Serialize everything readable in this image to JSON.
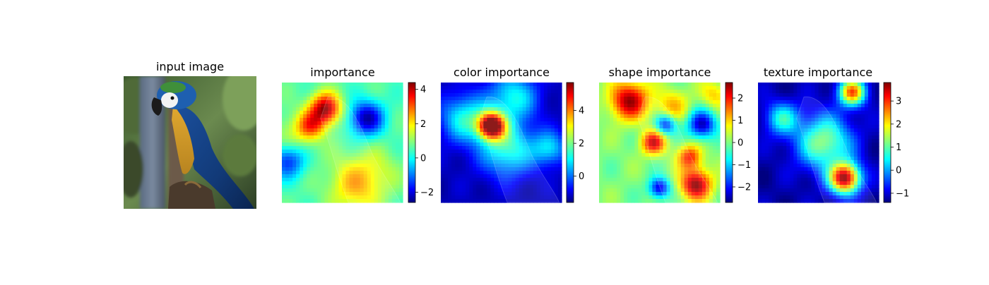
{
  "chart_data": [
    {
      "type": "image",
      "title": "input image",
      "content": "parrot photo"
    },
    {
      "type": "heatmap",
      "title": "importance",
      "colorbar": {
        "ticks": [
          -2,
          0,
          2,
          4
        ],
        "range": [
          -2.6,
          4.4
        ]
      },
      "hotspots": [
        {
          "x": 0.36,
          "y": 0.22,
          "value": 4.2,
          "spread": 0.09
        },
        {
          "x": 0.24,
          "y": 0.36,
          "value": 2.6,
          "spread": 0.08
        },
        {
          "x": 0.62,
          "y": 0.85,
          "value": 2.3,
          "spread": 0.16
        },
        {
          "x": 0.1,
          "y": 0.45,
          "value": 1.4,
          "spread": 0.14
        },
        {
          "x": 0.82,
          "y": 0.7,
          "value": 1.0,
          "spread": 0.12
        },
        {
          "x": 0.7,
          "y": 0.3,
          "value": -2.3,
          "spread": 0.1
        },
        {
          "x": 0.05,
          "y": 0.65,
          "value": -1.6,
          "spread": 0.1
        }
      ],
      "base": 0.6
    },
    {
      "type": "heatmap",
      "title": "color importance",
      "colorbar": {
        "ticks": [
          0,
          2,
          4
        ],
        "range": [
          -1.6,
          5.7
        ]
      },
      "hotspots": [
        {
          "x": 0.42,
          "y": 0.36,
          "value": 5.4,
          "spread": 0.08
        },
        {
          "x": 0.55,
          "y": 0.55,
          "value": 1.5,
          "spread": 0.16
        },
        {
          "x": 0.2,
          "y": 0.3,
          "value": 1.3,
          "spread": 0.14
        },
        {
          "x": 0.6,
          "y": 0.12,
          "value": 1.2,
          "spread": 0.14
        },
        {
          "x": 0.9,
          "y": 0.55,
          "value": 0.8,
          "spread": 0.1
        }
      ],
      "base": -1.2
    },
    {
      "type": "heatmap",
      "title": "shape importance",
      "colorbar": {
        "ticks": [
          -2,
          -1,
          0,
          1,
          2
        ],
        "range": [
          -2.7,
          2.7
        ]
      },
      "hotspots": [
        {
          "x": 0.25,
          "y": 0.15,
          "value": 2.5,
          "spread": 0.11
        },
        {
          "x": 0.45,
          "y": 0.5,
          "value": 2.2,
          "spread": 0.07
        },
        {
          "x": 0.8,
          "y": 0.85,
          "value": 2.6,
          "spread": 0.09
        },
        {
          "x": 0.75,
          "y": 0.62,
          "value": 1.8,
          "spread": 0.07
        },
        {
          "x": 0.6,
          "y": 0.2,
          "value": 1.0,
          "spread": 0.1
        },
        {
          "x": 0.85,
          "y": 0.35,
          "value": -2.4,
          "spread": 0.08
        },
        {
          "x": 0.55,
          "y": 0.35,
          "value": -2.0,
          "spread": 0.06
        },
        {
          "x": 0.5,
          "y": 0.88,
          "value": -2.2,
          "spread": 0.06
        },
        {
          "x": 0.95,
          "y": 0.1,
          "value": 0.9,
          "spread": 0.08
        }
      ],
      "base": 0.0
    },
    {
      "type": "heatmap",
      "title": "texture importance",
      "colorbar": {
        "ticks": [
          -1,
          0,
          1,
          2,
          3
        ],
        "range": [
          -1.4,
          3.8
        ]
      },
      "hotspots": [
        {
          "x": 0.72,
          "y": 0.8,
          "value": 3.6,
          "spread": 0.09
        },
        {
          "x": 0.78,
          "y": 0.08,
          "value": 2.6,
          "spread": 0.08
        },
        {
          "x": 0.55,
          "y": 0.5,
          "value": 1.3,
          "spread": 0.16
        },
        {
          "x": 0.2,
          "y": 0.3,
          "value": 0.6,
          "spread": 0.1
        }
      ],
      "base": -1.2
    }
  ]
}
